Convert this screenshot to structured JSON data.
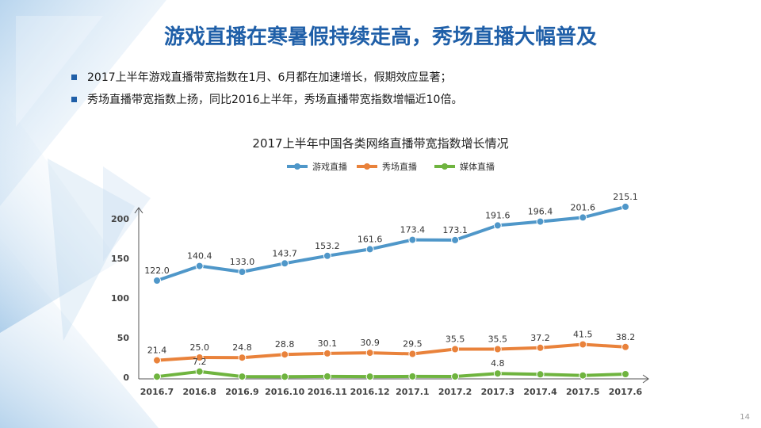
{
  "slide": {
    "title": "游戏直播在寒暑假持续走高，秀场直播大幅普及",
    "bullets": [
      "2017上半年游戏直播带宽指数在1月、6月都在加速增长，假期效应显著；",
      "秀场直播带宽指数上扬，同比2016上半年，秀场直播带宽指数增幅近10倍。"
    ],
    "page_number": "14"
  },
  "colors": {
    "title": "#1f5fa8",
    "bullet": "#1f5fa8",
    "series": [
      "#4f97c9",
      "#e9823b",
      "#6fb43f"
    ]
  },
  "chart_data": {
    "type": "line",
    "title": "2017上半年中国各类网络直播带宽指数增长情况",
    "xlabel": "",
    "ylabel": "",
    "x": [
      "2016.7",
      "2016.8",
      "2016.9",
      "2016.10",
      "2016.11",
      "2016.12",
      "2017.1",
      "2017.2",
      "2017.3",
      "2017.4",
      "2017.5",
      "2017.6"
    ],
    "ylim": [
      0,
      220
    ],
    "yticks": [
      0,
      50,
      100,
      150,
      200
    ],
    "legend_position": "top",
    "grid": false,
    "series": [
      {
        "name": "游戏直播",
        "values": [
          122.0,
          140.4,
          133.0,
          143.7,
          153.2,
          161.6,
          173.4,
          173.1,
          191.6,
          196.4,
          201.6,
          215.1
        ],
        "labels": [
          "122.0",
          "140.4",
          "133.0",
          "143.7",
          "153.2",
          "161.6",
          "173.4",
          "173.1",
          "191.6",
          "196.4",
          "201.6",
          "215.1"
        ]
      },
      {
        "name": "秀场直播",
        "values": [
          21.4,
          25.0,
          24.8,
          28.8,
          30.1,
          30.9,
          29.5,
          35.5,
          35.5,
          37.2,
          41.5,
          38.2
        ],
        "labels": [
          "21.4",
          "25.0",
          "24.8",
          "28.8",
          "30.1",
          "30.9",
          "29.5",
          "35.5",
          "35.5",
          "37.2",
          "41.5",
          "38.2"
        ]
      },
      {
        "name": "媒体直播",
        "values": [
          0.8,
          7.2,
          0.9,
          0.7,
          1.1,
          0.9,
          1.1,
          1.0,
          4.8,
          3.7,
          2.3,
          4.0
        ],
        "labels": [
          "",
          "7.2",
          "",
          "",
          "",
          "",
          "",
          "",
          "4.8",
          "",
          "",
          ""
        ]
      }
    ]
  }
}
